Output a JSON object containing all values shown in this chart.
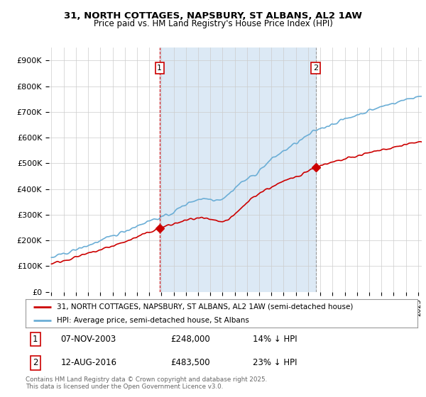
{
  "title": "31, NORTH COTTAGES, NAPSBURY, ST ALBANS, AL2 1AW",
  "subtitle": "Price paid vs. HM Land Registry's House Price Index (HPI)",
  "legend_property": "31, NORTH COTTAGES, NAPSBURY, ST ALBANS, AL2 1AW (semi-detached house)",
  "legend_hpi": "HPI: Average price, semi-detached house, St Albans",
  "footnote": "Contains HM Land Registry data © Crown copyright and database right 2025.\nThis data is licensed under the Open Government Licence v3.0.",
  "transaction1_date": "07-NOV-2003",
  "transaction1_price": "£248,000",
  "transaction1_hpi": "14% ↓ HPI",
  "transaction2_date": "12-AUG-2016",
  "transaction2_price": "£483,500",
  "transaction2_hpi": "23% ↓ HPI",
  "property_color": "#cc0000",
  "hpi_color": "#6baed6",
  "hpi_fill_color": "#dce9f5",
  "background_color": "#ffffff",
  "grid_color": "#cccccc",
  "ylim": [
    0,
    950000
  ],
  "yticks": [
    0,
    100000,
    200000,
    300000,
    400000,
    500000,
    600000,
    700000,
    800000,
    900000
  ],
  "ytick_labels": [
    "£0",
    "£100K",
    "£200K",
    "£300K",
    "£400K",
    "£500K",
    "£600K",
    "£700K",
    "£800K",
    "£900K"
  ],
  "vline1_x": 2003.85,
  "vline2_x": 2016.62,
  "marker1_property_y": 248000,
  "marker2_property_y": 483500,
  "xlim": [
    1994.8,
    2025.3
  ]
}
